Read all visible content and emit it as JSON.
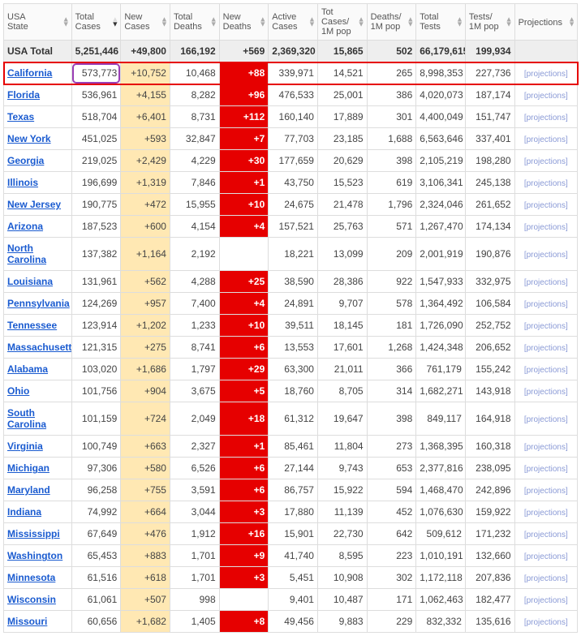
{
  "headers": [
    {
      "label": "USA\nState",
      "sort": "both"
    },
    {
      "label": "Total\nCases",
      "sort": "desc"
    },
    {
      "label": "New\nCases",
      "sort": "both"
    },
    {
      "label": "Total\nDeaths",
      "sort": "both"
    },
    {
      "label": "New\nDeaths",
      "sort": "both"
    },
    {
      "label": "Active\nCases",
      "sort": "both"
    },
    {
      "label": "Tot Cases/\n1M pop",
      "sort": "both"
    },
    {
      "label": "Deaths/\n1M pop",
      "sort": "both"
    },
    {
      "label": "Total\nTests",
      "sort": "both"
    },
    {
      "label": "Tests/\n1M pop",
      "sort": "both"
    },
    {
      "label": "Projections",
      "sort": "both"
    }
  ],
  "total_row": {
    "state": "USA Total",
    "total_cases": "5,251,446",
    "new_cases": "+49,800",
    "total_deaths": "166,192",
    "new_deaths": "+569",
    "active": "2,369,320",
    "cases_1m": "15,865",
    "deaths_1m": "502",
    "total_tests": "66,179,615",
    "tests_1m": "199,934",
    "proj": ""
  },
  "rows": [
    {
      "state": "California",
      "total_cases": "573,773",
      "new_cases": "+10,752",
      "total_deaths": "10,468",
      "new_deaths": "+88",
      "active": "339,971",
      "cases_1m": "14,521",
      "deaths_1m": "265",
      "total_tests": "8,998,353",
      "tests_1m": "227,736",
      "proj": "[projections]",
      "highlight_row": true,
      "highlight_cell": "total_cases"
    },
    {
      "state": "Florida",
      "total_cases": "536,961",
      "new_cases": "+4,155",
      "total_deaths": "8,282",
      "new_deaths": "+96",
      "active": "476,533",
      "cases_1m": "25,001",
      "deaths_1m": "386",
      "total_tests": "4,020,073",
      "tests_1m": "187,174",
      "proj": "[projections]"
    },
    {
      "state": "Texas",
      "total_cases": "518,704",
      "new_cases": "+6,401",
      "total_deaths": "8,731",
      "new_deaths": "+112",
      "active": "160,140",
      "cases_1m": "17,889",
      "deaths_1m": "301",
      "total_tests": "4,400,049",
      "tests_1m": "151,747",
      "proj": "[projections]"
    },
    {
      "state": "New York",
      "total_cases": "451,025",
      "new_cases": "+593",
      "total_deaths": "32,847",
      "new_deaths": "+7",
      "active": "77,703",
      "cases_1m": "23,185",
      "deaths_1m": "1,688",
      "total_tests": "6,563,646",
      "tests_1m": "337,401",
      "proj": "[projections]"
    },
    {
      "state": "Georgia",
      "total_cases": "219,025",
      "new_cases": "+2,429",
      "total_deaths": "4,229",
      "new_deaths": "+30",
      "active": "177,659",
      "cases_1m": "20,629",
      "deaths_1m": "398",
      "total_tests": "2,105,219",
      "tests_1m": "198,280",
      "proj": "[projections]"
    },
    {
      "state": "Illinois",
      "total_cases": "196,699",
      "new_cases": "+1,319",
      "total_deaths": "7,846",
      "new_deaths": "+1",
      "active": "43,750",
      "cases_1m": "15,523",
      "deaths_1m": "619",
      "total_tests": "3,106,341",
      "tests_1m": "245,138",
      "proj": "[projections]"
    },
    {
      "state": "New Jersey",
      "total_cases": "190,775",
      "new_cases": "+472",
      "total_deaths": "15,955",
      "new_deaths": "+10",
      "active": "24,675",
      "cases_1m": "21,478",
      "deaths_1m": "1,796",
      "total_tests": "2,324,046",
      "tests_1m": "261,652",
      "proj": "[projections]"
    },
    {
      "state": "Arizona",
      "total_cases": "187,523",
      "new_cases": "+600",
      "total_deaths": "4,154",
      "new_deaths": "+4",
      "active": "157,521",
      "cases_1m": "25,763",
      "deaths_1m": "571",
      "total_tests": "1,267,470",
      "tests_1m": "174,134",
      "proj": "[projections]"
    },
    {
      "state": "North Carolina",
      "total_cases": "137,382",
      "new_cases": "+1,164",
      "total_deaths": "2,192",
      "new_deaths": "",
      "active": "18,221",
      "cases_1m": "13,099",
      "deaths_1m": "209",
      "total_tests": "2,001,919",
      "tests_1m": "190,876",
      "proj": "[projections]"
    },
    {
      "state": "Louisiana",
      "total_cases": "131,961",
      "new_cases": "+562",
      "total_deaths": "4,288",
      "new_deaths": "+25",
      "active": "38,590",
      "cases_1m": "28,386",
      "deaths_1m": "922",
      "total_tests": "1,547,933",
      "tests_1m": "332,975",
      "proj": "[projections]"
    },
    {
      "state": "Pennsylvania",
      "total_cases": "124,269",
      "new_cases": "+957",
      "total_deaths": "7,400",
      "new_deaths": "+4",
      "active": "24,891",
      "cases_1m": "9,707",
      "deaths_1m": "578",
      "total_tests": "1,364,492",
      "tests_1m": "106,584",
      "proj": "[projections]"
    },
    {
      "state": "Tennessee",
      "total_cases": "123,914",
      "new_cases": "+1,202",
      "total_deaths": "1,233",
      "new_deaths": "+10",
      "active": "39,511",
      "cases_1m": "18,145",
      "deaths_1m": "181",
      "total_tests": "1,726,090",
      "tests_1m": "252,752",
      "proj": "[projections]"
    },
    {
      "state": "Massachusetts",
      "total_cases": "121,315",
      "new_cases": "+275",
      "total_deaths": "8,741",
      "new_deaths": "+6",
      "active": "13,553",
      "cases_1m": "17,601",
      "deaths_1m": "1,268",
      "total_tests": "1,424,348",
      "tests_1m": "206,652",
      "proj": "[projections]"
    },
    {
      "state": "Alabama",
      "total_cases": "103,020",
      "new_cases": "+1,686",
      "total_deaths": "1,797",
      "new_deaths": "+29",
      "active": "63,300",
      "cases_1m": "21,011",
      "deaths_1m": "366",
      "total_tests": "761,179",
      "tests_1m": "155,242",
      "proj": "[projections]"
    },
    {
      "state": "Ohio",
      "total_cases": "101,756",
      "new_cases": "+904",
      "total_deaths": "3,675",
      "new_deaths": "+5",
      "active": "18,760",
      "cases_1m": "8,705",
      "deaths_1m": "314",
      "total_tests": "1,682,271",
      "tests_1m": "143,918",
      "proj": "[projections]"
    },
    {
      "state": "South Carolina",
      "total_cases": "101,159",
      "new_cases": "+724",
      "total_deaths": "2,049",
      "new_deaths": "+18",
      "active": "61,312",
      "cases_1m": "19,647",
      "deaths_1m": "398",
      "total_tests": "849,117",
      "tests_1m": "164,918",
      "proj": "[projections]"
    },
    {
      "state": "Virginia",
      "total_cases": "100,749",
      "new_cases": "+663",
      "total_deaths": "2,327",
      "new_deaths": "+1",
      "active": "85,461",
      "cases_1m": "11,804",
      "deaths_1m": "273",
      "total_tests": "1,368,395",
      "tests_1m": "160,318",
      "proj": "[projections]"
    },
    {
      "state": "Michigan",
      "total_cases": "97,306",
      "new_cases": "+580",
      "total_deaths": "6,526",
      "new_deaths": "+6",
      "active": "27,144",
      "cases_1m": "9,743",
      "deaths_1m": "653",
      "total_tests": "2,377,816",
      "tests_1m": "238,095",
      "proj": "[projections]"
    },
    {
      "state": "Maryland",
      "total_cases": "96,258",
      "new_cases": "+755",
      "total_deaths": "3,591",
      "new_deaths": "+6",
      "active": "86,757",
      "cases_1m": "15,922",
      "deaths_1m": "594",
      "total_tests": "1,468,470",
      "tests_1m": "242,896",
      "proj": "[projections]"
    },
    {
      "state": "Indiana",
      "total_cases": "74,992",
      "new_cases": "+664",
      "total_deaths": "3,044",
      "new_deaths": "+3",
      "active": "17,880",
      "cases_1m": "11,139",
      "deaths_1m": "452",
      "total_tests": "1,076,630",
      "tests_1m": "159,922",
      "proj": "[projections]"
    },
    {
      "state": "Mississippi",
      "total_cases": "67,649",
      "new_cases": "+476",
      "total_deaths": "1,912",
      "new_deaths": "+16",
      "active": "15,901",
      "cases_1m": "22,730",
      "deaths_1m": "642",
      "total_tests": "509,612",
      "tests_1m": "171,232",
      "proj": "[projections]"
    },
    {
      "state": "Washington",
      "total_cases": "65,453",
      "new_cases": "+883",
      "total_deaths": "1,701",
      "new_deaths": "+9",
      "active": "41,740",
      "cases_1m": "8,595",
      "deaths_1m": "223",
      "total_tests": "1,010,191",
      "tests_1m": "132,660",
      "proj": "[projections]"
    },
    {
      "state": "Minnesota",
      "total_cases": "61,516",
      "new_cases": "+618",
      "total_deaths": "1,701",
      "new_deaths": "+3",
      "active": "5,451",
      "cases_1m": "10,908",
      "deaths_1m": "302",
      "total_tests": "1,172,118",
      "tests_1m": "207,836",
      "proj": "[projections]"
    },
    {
      "state": "Wisconsin",
      "total_cases": "61,061",
      "new_cases": "+507",
      "total_deaths": "998",
      "new_deaths": "",
      "active": "9,401",
      "cases_1m": "10,487",
      "deaths_1m": "171",
      "total_tests": "1,062,463",
      "tests_1m": "182,477",
      "proj": "[projections]"
    },
    {
      "state": "Missouri",
      "total_cases": "60,656",
      "new_cases": "+1,682",
      "total_deaths": "1,405",
      "new_deaths": "+8",
      "active": "49,456",
      "cases_1m": "9,883",
      "deaths_1m": "229",
      "total_tests": "832,332",
      "tests_1m": "135,616",
      "proj": "[projections]"
    }
  ],
  "col_keys": [
    "state",
    "total_cases",
    "new_cases",
    "total_deaths",
    "new_deaths",
    "active",
    "cases_1m",
    "deaths_1m",
    "total_tests",
    "tests_1m",
    "proj"
  ]
}
